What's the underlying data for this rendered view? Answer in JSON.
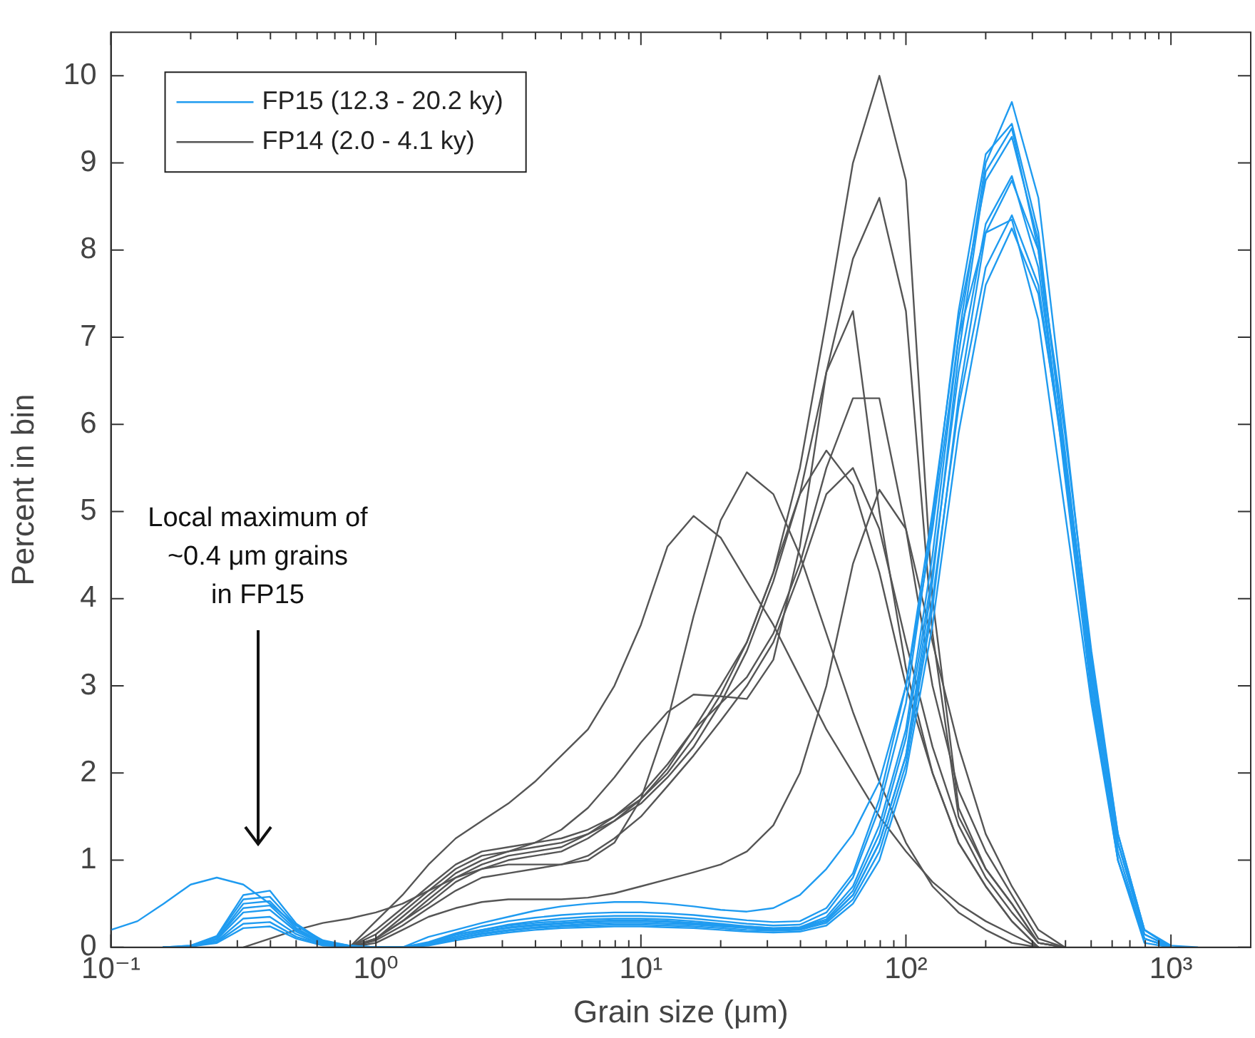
{
  "chart_data": {
    "type": "line",
    "xlabel": "Grain size (μm)",
    "ylabel": "Percent in bin",
    "log": "x",
    "legend": "top left",
    "xlim": [
      0.1,
      2000
    ],
    "ylim": [
      0,
      10.5
    ],
    "xticks": [
      {
        "value": 0.1,
        "label": "10⁻¹"
      },
      {
        "value": 0.2,
        "label": null
      },
      {
        "value": 0.3,
        "label": null
      },
      {
        "value": 0.4,
        "label": null
      },
      {
        "value": 0.5,
        "label": null
      },
      {
        "value": 0.6,
        "label": null
      },
      {
        "value": 0.7,
        "label": null
      },
      {
        "value": 0.8,
        "label": null
      },
      {
        "value": 0.9,
        "label": null
      },
      {
        "value": 1,
        "label": "10⁰"
      },
      {
        "value": 2,
        "label": null
      },
      {
        "value": 3,
        "label": null
      },
      {
        "value": 4,
        "label": null
      },
      {
        "value": 5,
        "label": null
      },
      {
        "value": 6,
        "label": null
      },
      {
        "value": 7,
        "label": null
      },
      {
        "value": 8,
        "label": null
      },
      {
        "value": 9,
        "label": null
      },
      {
        "value": 10,
        "label": "10¹"
      },
      {
        "value": 20,
        "label": null
      },
      {
        "value": 30,
        "label": null
      },
      {
        "value": 40,
        "label": null
      },
      {
        "value": 50,
        "label": null
      },
      {
        "value": 60,
        "label": null
      },
      {
        "value": 70,
        "label": null
      },
      {
        "value": 80,
        "label": null
      },
      {
        "value": 90,
        "label": null
      },
      {
        "value": 100,
        "label": "10²"
      },
      {
        "value": 200,
        "label": null
      },
      {
        "value": 300,
        "label": null
      },
      {
        "value": 400,
        "label": null
      },
      {
        "value": 500,
        "label": null
      },
      {
        "value": 600,
        "label": null
      },
      {
        "value": 700,
        "label": null
      },
      {
        "value": 800,
        "label": null
      },
      {
        "value": 900,
        "label": null
      },
      {
        "value": 1000,
        "label": "10³"
      },
      {
        "value": 2000,
        "label": null
      }
    ],
    "yticks": [
      0,
      1,
      2,
      3,
      4,
      5,
      6,
      7,
      8,
      9,
      10
    ],
    "x": [
      0.1,
      0.126,
      0.158,
      0.2,
      0.251,
      0.316,
      0.398,
      0.501,
      0.631,
      0.794,
      1,
      1.26,
      1.58,
      2,
      2.51,
      3.16,
      3.98,
      5.01,
      6.31,
      7.94,
      10,
      12.6,
      15.8,
      20,
      25.1,
      31.6,
      39.8,
      50.1,
      63.1,
      79.4,
      100,
      126,
      158,
      200,
      251,
      316,
      398,
      501,
      631,
      794,
      1000,
      1259
    ],
    "annotations": [
      "Local maximum of\n~0.4 μm grains\nin FP15"
    ],
    "series": [
      {
        "name": "FP15 (12.3 - 20.2 ky)",
        "color": "#1f9bf0",
        "values": [
          0.2,
          0.3,
          0.5,
          0.72,
          0.8,
          0.72,
          0.5,
          0.25,
          0.08,
          0.02,
          0,
          0,
          0.12,
          0.2,
          0.28,
          0.35,
          0.42,
          0.47,
          0.5,
          0.52,
          0.52,
          0.5,
          0.47,
          0.43,
          0.41,
          0.45,
          0.6,
          0.9,
          1.3,
          1.9,
          3.0,
          4.8,
          7.0,
          8.2,
          8.35,
          7.2,
          5.0,
          2.8,
          1.0,
          0.1,
          0,
          null
        ]
      },
      {
        "color": "#1f9bf0",
        "values": [
          null,
          null,
          0,
          0.02,
          0.13,
          0.6,
          0.65,
          0.27,
          0.07,
          0.02,
          0,
          0,
          0.05,
          0.15,
          0.2,
          0.25,
          0.28,
          0.3,
          0.32,
          0.33,
          0.33,
          0.32,
          0.3,
          0.27,
          0.24,
          0.22,
          0.23,
          0.35,
          0.7,
          1.4,
          2.5,
          4.5,
          7.0,
          9.0,
          9.7,
          8.6,
          6.0,
          3.3,
          1.2,
          0.15,
          0,
          null
        ]
      },
      {
        "color": "#1f9bf0",
        "values": [
          null,
          null,
          0,
          0.02,
          0.12,
          0.55,
          0.58,
          0.25,
          0.06,
          0.02,
          0,
          0,
          0.05,
          0.14,
          0.2,
          0.26,
          0.3,
          0.33,
          0.35,
          0.36,
          0.36,
          0.35,
          0.33,
          0.3,
          0.27,
          0.25,
          0.26,
          0.4,
          0.8,
          1.6,
          2.8,
          4.9,
          7.3,
          9.1,
          9.45,
          8.2,
          5.6,
          3.0,
          1.0,
          0.1,
          0,
          null
        ]
      },
      {
        "color": "#1f9bf0",
        "values": [
          null,
          null,
          0,
          0.01,
          0.1,
          0.5,
          0.53,
          0.22,
          0.05,
          0.01,
          0,
          0,
          0.04,
          0.12,
          0.18,
          0.22,
          0.25,
          0.27,
          0.29,
          0.3,
          0.3,
          0.29,
          0.27,
          0.25,
          0.23,
          0.21,
          0.22,
          0.3,
          0.6,
          1.2,
          2.2,
          4.2,
          6.8,
          8.9,
          9.4,
          8.0,
          5.4,
          2.9,
          1.0,
          0.05,
          0,
          null
        ]
      },
      {
        "color": "#1f9bf0",
        "values": [
          null,
          null,
          0,
          0.01,
          0.1,
          0.45,
          0.48,
          0.2,
          0.05,
          0.01,
          0,
          0,
          0.06,
          0.16,
          0.24,
          0.3,
          0.34,
          0.37,
          0.39,
          0.4,
          0.4,
          0.39,
          0.37,
          0.34,
          0.31,
          0.29,
          0.3,
          0.45,
          0.85,
          1.7,
          3.0,
          5.0,
          7.2,
          8.8,
          9.3,
          8.1,
          5.7,
          3.2,
          1.2,
          0.2,
          0.02,
          0
        ]
      },
      {
        "color": "#1f9bf0",
        "values": [
          null,
          null,
          0,
          0.01,
          0.09,
          0.4,
          0.43,
          0.18,
          0.04,
          0.01,
          0,
          0,
          0.04,
          0.12,
          0.18,
          0.23,
          0.26,
          0.28,
          0.3,
          0.31,
          0.31,
          0.3,
          0.28,
          0.26,
          0.24,
          0.22,
          0.23,
          0.32,
          0.65,
          1.3,
          2.4,
          4.3,
          6.6,
          8.3,
          8.85,
          7.8,
          5.5,
          3.1,
          1.1,
          0.1,
          0,
          null
        ]
      },
      {
        "color": "#1f9bf0",
        "values": [
          null,
          null,
          0,
          0.01,
          0.07,
          0.33,
          0.35,
          0.15,
          0.03,
          0.01,
          0,
          0,
          0.03,
          0.1,
          0.15,
          0.19,
          0.22,
          0.24,
          0.25,
          0.26,
          0.26,
          0.25,
          0.24,
          0.22,
          0.2,
          0.19,
          0.2,
          0.28,
          0.55,
          1.1,
          2.1,
          3.9,
          6.3,
          8.2,
          8.8,
          8.0,
          5.9,
          3.4,
          1.3,
          0.2,
          0,
          null
        ]
      },
      {
        "color": "#1f9bf0",
        "values": [
          null,
          null,
          0,
          0.01,
          0.06,
          0.27,
          0.29,
          0.12,
          0.03,
          0.01,
          0,
          0,
          0.03,
          0.1,
          0.16,
          0.2,
          0.23,
          0.25,
          0.27,
          0.28,
          0.28,
          0.27,
          0.26,
          0.24,
          0.22,
          0.2,
          0.21,
          0.3,
          0.6,
          1.2,
          2.2,
          4.0,
          6.2,
          7.8,
          8.4,
          7.6,
          5.5,
          3.2,
          1.2,
          0.15,
          0,
          null
        ]
      },
      {
        "color": "#1f9bf0",
        "values": [
          null,
          null,
          0,
          0.01,
          0.05,
          0.22,
          0.24,
          0.1,
          0.02,
          0.01,
          0,
          0,
          0.02,
          0.08,
          0.13,
          0.17,
          0.2,
          0.22,
          0.23,
          0.24,
          0.24,
          0.23,
          0.22,
          0.2,
          0.18,
          0.17,
          0.18,
          0.25,
          0.5,
          1.0,
          2.0,
          3.7,
          5.9,
          7.6,
          8.25,
          7.5,
          5.6,
          3.3,
          1.3,
          0.2,
          0,
          null
        ]
      },
      {
        "name": "FP14 (2.0 - 4.1 ky)",
        "color": "#555555",
        "values": [
          null,
          null,
          null,
          null,
          null,
          null,
          null,
          null,
          null,
          0,
          0.2,
          0.45,
          0.7,
          0.95,
          1.1,
          1.15,
          1.2,
          1.25,
          1.35,
          1.5,
          1.7,
          2.0,
          2.4,
          2.9,
          3.5,
          4.3,
          5.5,
          7.2,
          9.0,
          10.0,
          8.8,
          4.0,
          1.6,
          0.9,
          0.5,
          0.05,
          0,
          null,
          null,
          null,
          null,
          null
        ]
      },
      {
        "color": "#555555",
        "values": [
          null,
          null,
          null,
          null,
          null,
          null,
          null,
          null,
          null,
          0,
          0.15,
          0.4,
          0.65,
          0.9,
          1.05,
          1.1,
          1.15,
          1.2,
          1.3,
          1.45,
          1.65,
          1.95,
          2.3,
          2.8,
          3.4,
          4.2,
          5.2,
          6.6,
          7.9,
          8.6,
          7.3,
          3.6,
          1.5,
          0.9,
          0.5,
          0.05,
          0,
          null,
          null,
          null,
          null,
          null
        ]
      },
      {
        "color": "#555555",
        "values": [
          null,
          null,
          null,
          null,
          null,
          null,
          null,
          null,
          null,
          0,
          0.1,
          0.35,
          0.6,
          0.85,
          1.0,
          1.1,
          1.2,
          1.35,
          1.6,
          1.95,
          2.35,
          2.7,
          2.9,
          2.88,
          2.85,
          3.3,
          4.6,
          6.6,
          7.3,
          5.0,
          3.2,
          2.0,
          1.2,
          0.7,
          0.3,
          0,
          null,
          null,
          null,
          null,
          null,
          null
        ]
      },
      {
        "color": "#555555",
        "values": [
          null,
          null,
          null,
          null,
          null,
          null,
          null,
          null,
          null,
          0,
          0.1,
          0.3,
          0.55,
          0.8,
          0.95,
          1.05,
          1.1,
          1.15,
          1.3,
          1.5,
          1.75,
          2.1,
          2.5,
          2.8,
          3.1,
          3.6,
          4.4,
          5.5,
          6.3,
          6.3,
          4.8,
          3.0,
          1.8,
          1.1,
          0.6,
          0.1,
          0,
          null,
          null,
          null,
          null,
          null
        ]
      },
      {
        "color": "#555555",
        "values": [
          null,
          null,
          null,
          null,
          null,
          null,
          null,
          null,
          null,
          0,
          0.1,
          0.3,
          0.5,
          0.75,
          0.9,
          1.0,
          1.05,
          1.1,
          1.25,
          1.45,
          1.7,
          2.05,
          2.5,
          3.0,
          3.5,
          4.3,
          5.2,
          5.7,
          5.3,
          4.3,
          3.0,
          2.0,
          1.2,
          0.7,
          0.3,
          0,
          null,
          null,
          null,
          null,
          null,
          null
        ]
      },
      {
        "color": "#555555",
        "values": [
          null,
          null,
          null,
          null,
          null,
          null,
          null,
          null,
          null,
          0,
          0.08,
          0.25,
          0.45,
          0.65,
          0.8,
          0.85,
          0.9,
          0.95,
          1.05,
          1.25,
          1.5,
          1.85,
          2.2,
          2.6,
          3.0,
          3.5,
          4.3,
          5.2,
          5.5,
          4.8,
          3.5,
          2.3,
          1.4,
          0.8,
          0.4,
          0.05,
          0,
          null,
          null,
          null,
          null,
          null
        ]
      },
      {
        "color": "#555555",
        "values": [
          null,
          null,
          null,
          null,
          null,
          null,
          null,
          null,
          null,
          0,
          0.05,
          0.2,
          0.35,
          0.45,
          0.52,
          0.55,
          0.55,
          0.55,
          0.57,
          0.62,
          0.7,
          0.78,
          0.86,
          0.95,
          1.1,
          1.4,
          2.0,
          3.0,
          4.4,
          5.25,
          4.8,
          3.5,
          2.3,
          1.3,
          0.7,
          0.2,
          0,
          null,
          null,
          null,
          null,
          null
        ]
      },
      {
        "color": "#555555",
        "values": [
          null,
          null,
          null,
          null,
          null,
          0,
          0.1,
          0.2,
          0.28,
          0.33,
          0.4,
          0.5,
          0.65,
          0.8,
          0.9,
          0.95,
          0.95,
          0.95,
          1.0,
          1.2,
          1.7,
          2.6,
          3.8,
          4.9,
          5.45,
          5.2,
          4.5,
          3.6,
          2.7,
          1.9,
          1.2,
          0.7,
          0.4,
          0.2,
          0.05,
          0,
          null,
          null,
          null,
          null,
          null,
          null
        ]
      },
      {
        "color": "#555555",
        "values": [
          null,
          null,
          null,
          null,
          null,
          null,
          null,
          null,
          null,
          0,
          0.3,
          0.6,
          0.95,
          1.25,
          1.45,
          1.65,
          1.9,
          2.2,
          2.5,
          3.0,
          3.7,
          4.6,
          4.95,
          4.7,
          4.2,
          3.7,
          3.1,
          2.5,
          2.0,
          1.5,
          1.1,
          0.75,
          0.5,
          0.3,
          0.15,
          0,
          null,
          null,
          null,
          null,
          null,
          null
        ]
      }
    ]
  }
}
